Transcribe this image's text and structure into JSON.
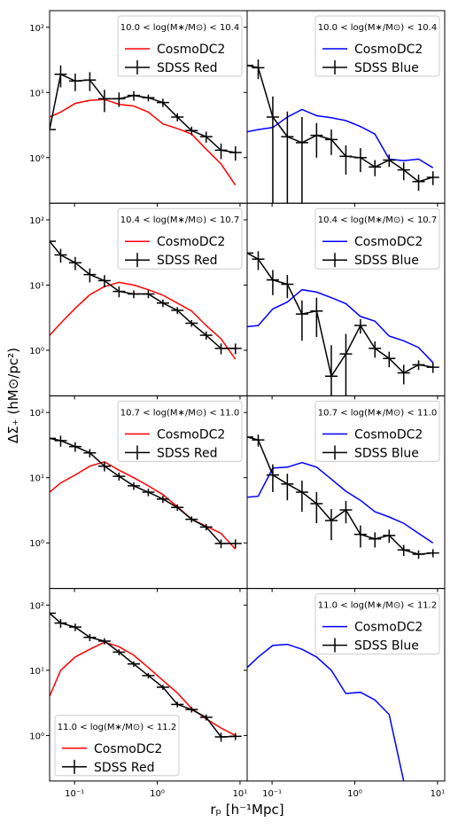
{
  "figure": {
    "xlabel": "rₚ [h⁻¹Mpc]",
    "ylabel": "ΔΣ₊ (hM⊙/pc²)",
    "xscale": "log",
    "yscale": "log",
    "xlim": [
      0.05,
      12.2
    ],
    "ylim": [
      0.2,
      180
    ],
    "xticks": [
      {
        "value": 0.1,
        "label": "10⁻¹"
      },
      {
        "value": 1,
        "label": "10⁰"
      },
      {
        "value": 10,
        "label": "10¹"
      }
    ],
    "yticks": [
      {
        "value": 1,
        "label": "10⁰"
      },
      {
        "value": 10,
        "label": "10¹"
      },
      {
        "value": 100,
        "label": "10²"
      }
    ]
  },
  "chart_data": [
    {
      "type": "line",
      "legend_title": "10.0 < log(M∗/M⊙) < 10.4",
      "legend_loc": "upper right",
      "x": [
        0.05,
        0.068,
        0.102,
        0.153,
        0.23,
        0.345,
        0.52,
        0.78,
        1.17,
        1.75,
        2.6,
        3.9,
        5.9,
        8.8
      ],
      "series": [
        {
          "name": "CosmoDC2",
          "color": "#ff0000",
          "values": [
            4.2,
            5.0,
            6.8,
            7.6,
            7.8,
            6.6,
            6.2,
            5.0,
            3.3,
            2.8,
            2.3,
            1.35,
            0.8,
            0.38
          ]
        },
        {
          "name": "SDSS Red",
          "color": "#000000",
          "values": [
            2.7,
            19,
            15,
            15.5,
            8,
            8,
            9,
            8.3,
            7,
            4.2,
            2.6,
            2.1,
            1.3,
            1.2
          ],
          "errors": [
            0,
            7,
            4.5,
            5,
            3,
            2,
            1.5,
            1,
            1,
            0.6,
            0.4,
            0.4,
            0.35,
            0.3
          ]
        }
      ]
    },
    {
      "type": "line",
      "legend_title": "10.0 < log(M∗/M⊙) < 10.4",
      "legend_loc": "upper right",
      "x": [
        0.05,
        0.068,
        0.102,
        0.153,
        0.23,
        0.345,
        0.52,
        0.78,
        1.17,
        1.75,
        2.6,
        3.9,
        5.9,
        8.8
      ],
      "series": [
        {
          "name": "CosmoDC2",
          "color": "#0000ff",
          "values": [
            2.5,
            2.7,
            2.9,
            4.2,
            5.5,
            4.4,
            4.1,
            3.7,
            3.0,
            2.3,
            0.95,
            0.9,
            0.95,
            0.7
          ]
        },
        {
          "name": "SDSS Blue",
          "color": "#000000",
          "values": [
            26,
            24,
            4.2,
            2.1,
            1.7,
            2.2,
            1.9,
            1.05,
            1.0,
            0.72,
            0.92,
            0.65,
            0.43,
            0.5
          ],
          "errors": [
            0,
            8,
            4.5,
            3,
            2.5,
            1.2,
            0.8,
            0.5,
            0.4,
            0.2,
            0.2,
            0.2,
            0.12,
            0.12
          ]
        }
      ]
    },
    {
      "type": "line",
      "legend_title": "10.4 < log(M∗/M⊙) < 10.7",
      "legend_loc": "upper right",
      "x": [
        0.05,
        0.068,
        0.102,
        0.153,
        0.23,
        0.345,
        0.52,
        0.78,
        1.17,
        1.75,
        2.6,
        3.9,
        5.9,
        8.8
      ],
      "series": [
        {
          "name": "CosmoDC2",
          "color": "#ff0000",
          "values": [
            1.7,
            2.6,
            4.4,
            7.1,
            9.5,
            11,
            10,
            8.5,
            7,
            5.3,
            4.0,
            2.4,
            1.5,
            0.73
          ]
        },
        {
          "name": "SDSS Red",
          "color": "#000000",
          "values": [
            47,
            29,
            22,
            14.5,
            11.7,
            8,
            7.3,
            7.3,
            5.3,
            4.1,
            2.6,
            1.7,
            1.07,
            1.07
          ],
          "errors": [
            0,
            7,
            5,
            3.5,
            2.5,
            1.5,
            1,
            1,
            0.7,
            0.5,
            0.3,
            0.25,
            0.2,
            0.2
          ]
        }
      ]
    },
    {
      "type": "line",
      "legend_title": "10.4 < log(M∗/M⊙) < 10.7",
      "legend_loc": "upper right",
      "x": [
        0.05,
        0.068,
        0.102,
        0.153,
        0.23,
        0.345,
        0.52,
        0.78,
        1.17,
        1.75,
        2.6,
        3.9,
        5.9,
        8.8
      ],
      "series": [
        {
          "name": "CosmoDC2",
          "color": "#0000ff",
          "values": [
            2.3,
            2.4,
            4.3,
            5.5,
            8.5,
            7.8,
            6.4,
            5.2,
            3.3,
            2.8,
            1.65,
            1.4,
            1.1,
            0.65
          ]
        },
        {
          "name": "SDSS Blue",
          "color": "#000000",
          "values": [
            31,
            25,
            12,
            10.3,
            3.6,
            4,
            0.4,
            0.88,
            2.4,
            1.07,
            0.75,
            0.45,
            0.6,
            0.55
          ],
          "errors": [
            0,
            8,
            5,
            4,
            2.2,
            2.4,
            0.8,
            0.9,
            0.6,
            0.3,
            0.2,
            0.15,
            0.1,
            0.1
          ]
        }
      ]
    },
    {
      "type": "line",
      "legend_title": "10.7 < log(M∗/M⊙) < 11.0",
      "legend_loc": "upper right",
      "x": [
        0.05,
        0.068,
        0.102,
        0.153,
        0.23,
        0.345,
        0.52,
        0.78,
        1.17,
        1.75,
        2.6,
        3.9,
        5.9,
        8.8
      ],
      "series": [
        {
          "name": "CosmoDC2",
          "color": "#ff0000",
          "values": [
            6,
            8.3,
            11,
            15,
            17.5,
            13,
            10,
            7.5,
            5.5,
            3.6,
            2.3,
            1.8,
            1.4,
            0.8
          ]
        },
        {
          "name": "SDSS Red",
          "color": "#000000",
          "values": [
            40,
            37,
            30,
            24,
            15,
            10.5,
            7.5,
            6,
            4.7,
            3.5,
            2.3,
            1.75,
            0.98,
            0.98
          ],
          "errors": [
            0,
            7,
            5,
            3.5,
            2.5,
            1.5,
            1,
            0.8,
            0.6,
            0.4,
            0.25,
            0.2,
            0.15,
            0.15
          ]
        }
      ]
    },
    {
      "type": "line",
      "legend_title": "10.7 < log(M∗/M⊙) < 11.0",
      "legend_loc": "upper right",
      "x": [
        0.05,
        0.068,
        0.102,
        0.153,
        0.23,
        0.345,
        0.52,
        0.78,
        1.17,
        1.75,
        2.6,
        3.9,
        5.9,
        8.8
      ],
      "series": [
        {
          "name": "CosmoDC2",
          "color": "#0000ff",
          "values": [
            5,
            5.2,
            14,
            14.5,
            17,
            14.5,
            9.5,
            6.2,
            4.5,
            3,
            2.5,
            2,
            1.4,
            1.0
          ]
        },
        {
          "name": "SDSS Blue",
          "color": "#000000",
          "values": [
            42,
            38,
            11,
            8,
            6,
            4,
            2.2,
            3.2,
            1.35,
            1.15,
            1.3,
            0.78,
            0.67,
            0.7
          ],
          "errors": [
            0,
            8,
            5,
            3.5,
            3,
            2,
            1.1,
            1.2,
            0.5,
            0.3,
            0.3,
            0.15,
            0.1,
            0.1
          ]
        }
      ]
    },
    {
      "type": "line",
      "legend_title": "11.0 < log(M∗/M⊙) < 11.2",
      "legend_loc": "lower left",
      "x": [
        0.05,
        0.068,
        0.102,
        0.153,
        0.23,
        0.345,
        0.52,
        0.78,
        1.17,
        1.75,
        2.6,
        3.9,
        5.9,
        8.8
      ],
      "series": [
        {
          "name": "CosmoDC2",
          "color": "#ff0000",
          "values": [
            4,
            10,
            16,
            21,
            27,
            23,
            17,
            11,
            7,
            4.5,
            2.6,
            1.8,
            1.3,
            1.0
          ]
        },
        {
          "name": "SDSS Red",
          "color": "#000000",
          "values": [
            75,
            53,
            46,
            32,
            28,
            19,
            12.5,
            8.3,
            5.5,
            3,
            2.5,
            1.9,
            0.95,
            0.97
          ],
          "errors": [
            0,
            8,
            6,
            4,
            3,
            2,
            1.2,
            0.8,
            0.5,
            0.3,
            0.25,
            0.2,
            0.15,
            0.12
          ]
        }
      ]
    },
    {
      "type": "line",
      "legend_title": "11.0 < log(M∗/M⊙) < 11.2",
      "legend_loc": "upper right",
      "x": [
        0.05,
        0.068,
        0.102,
        0.153,
        0.23,
        0.345,
        0.52,
        0.78,
        1.17,
        1.75,
        2.6,
        3.9,
        5.9,
        8.8
      ],
      "series": [
        {
          "name": "CosmoDC2",
          "color": "#0000ff",
          "values": [
            11,
            16,
            24,
            25,
            21,
            16,
            10,
            4.4,
            4.6,
            3.5,
            2.1,
            0.2,
            null,
            null
          ]
        },
        {
          "name": "SDSS Blue",
          "color": "#000000",
          "values": [
            null,
            null,
            null,
            null,
            null,
            null,
            null,
            null,
            null,
            null,
            null,
            null,
            null,
            null
          ],
          "errors": [
            null,
            null,
            null,
            null,
            null,
            null,
            null,
            null,
            null,
            null,
            null,
            null,
            null,
            null
          ]
        }
      ]
    }
  ]
}
